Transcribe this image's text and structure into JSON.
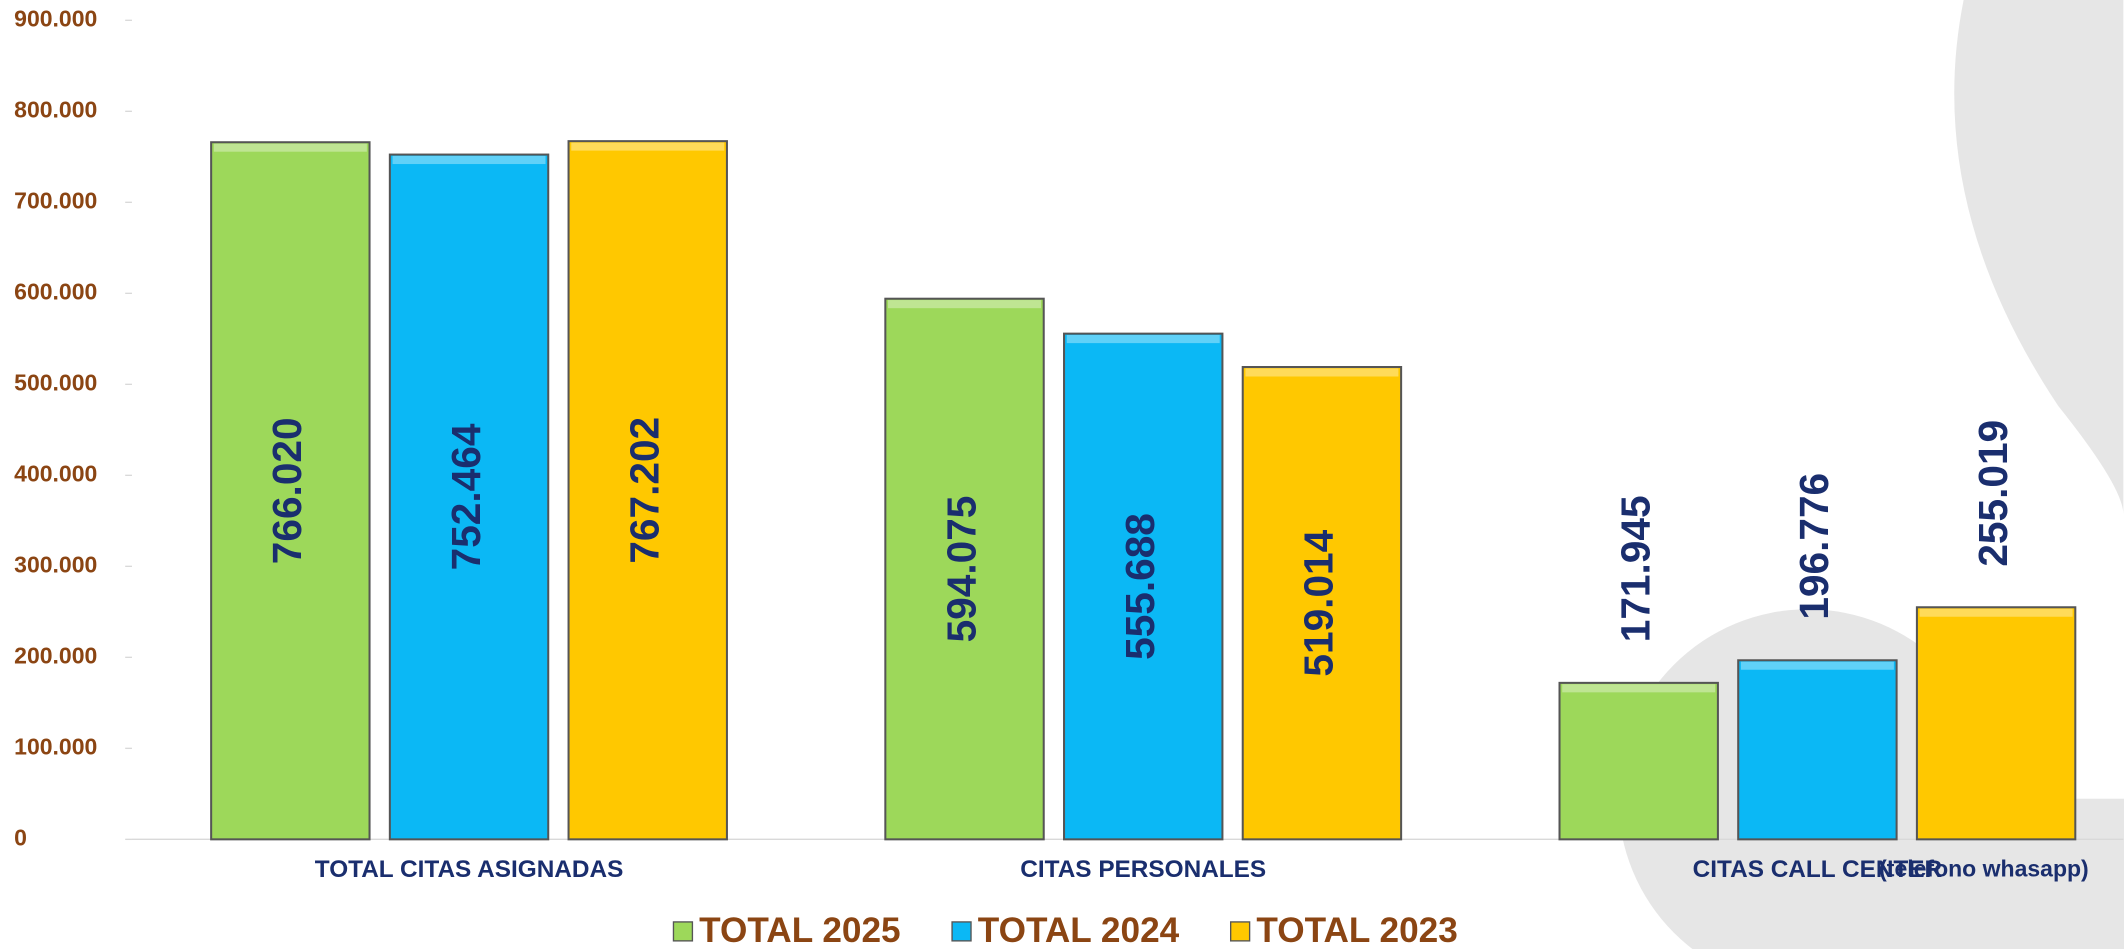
{
  "chart_data": {
    "type": "bar",
    "categories": [
      "TOTAL CITAS ASIGNADAS",
      "CITAS PERSONALES",
      "CITAS CALL CENTER"
    ],
    "annotation": "(telefono whasapp)",
    "series": [
      {
        "name": "TOTAL 2025",
        "color": "#9dd85a",
        "values": [
          766020,
          594075,
          171945
        ],
        "value_labels": [
          "766.020",
          "594.075",
          "171.945"
        ]
      },
      {
        "name": "TOTAL 2024",
        "color": "#0bb8f5",
        "values": [
          752464,
          555688,
          196776
        ],
        "value_labels": [
          "752.464",
          "555.688",
          "196.776"
        ]
      },
      {
        "name": "TOTAL 2023",
        "color": "#ffc800",
        "values": [
          767202,
          519014,
          255019
        ],
        "value_labels": [
          "767.202",
          "519.014",
          "255.019"
        ]
      }
    ],
    "ylim": [
      0,
      900000
    ],
    "yticks": [
      0,
      {
        "value": 100000,
        "label": "100.000"
      },
      {
        "value": 200000,
        "label": "200.000"
      },
      {
        "value": 300000,
        "label": "300.000"
      },
      {
        "value": 400000,
        "label": "400.000"
      },
      {
        "value": 500000,
        "label": "500.000"
      },
      {
        "value": 600000,
        "label": "600.000"
      },
      {
        "value": 700000,
        "label": "700.000"
      },
      {
        "value": 800000,
        "label": "800.000"
      },
      {
        "value": 900000,
        "label": "900.000"
      }
    ],
    "grid": false,
    "legend": "bottom"
  }
}
